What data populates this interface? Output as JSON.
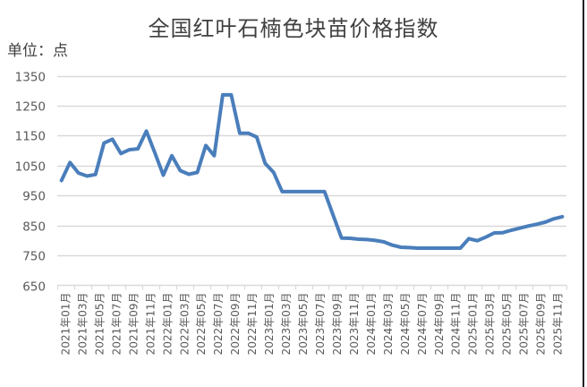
{
  "chart_data": {
    "type": "line",
    "title": "全国红叶石楠色块苗价格指数",
    "unit_label": "单位：点",
    "xlabel": "",
    "ylabel": "单位：点",
    "ylim": [
      650,
      1350
    ],
    "yticks": [
      650,
      750,
      850,
      950,
      1050,
      1150,
      1250,
      1350
    ],
    "grid": true,
    "legend": "none",
    "line_color": "#4a7ebb",
    "grid_color": "#d9d9d9",
    "x": [
      "2021年01月",
      "2021年02月",
      "2021年03月",
      "2021年04月",
      "2021年05月",
      "2021年06月",
      "2021年07月",
      "2021年08月",
      "2021年09月",
      "2021年10月",
      "2021年11月",
      "2021年12月",
      "2022年01月",
      "2022年02月",
      "2022年03月",
      "2022年04月",
      "2022年05月",
      "2022年06月",
      "2022年07月",
      "2022年08月",
      "2022年09月",
      "2022年10月",
      "2022年11月",
      "2022年12月",
      "2023年01月",
      "2023年02月",
      "2023年03月",
      "2023年04月",
      "2023年05月",
      "2023年06月",
      "2023年07月",
      "2023年08月",
      "2023年09月",
      "2023年10月",
      "2023年11月",
      "2023年12月",
      "2024年01月",
      "2024年02月",
      "2024年03月",
      "2024年04月",
      "2024年05月",
      "2024年06月",
      "2024年07月",
      "2024年08月",
      "2024年09月",
      "2024年10月",
      "2024年11月",
      "2024年12月",
      "2025年01月",
      "2025年02月",
      "2025年03月",
      "2025年04月",
      "2025年05月",
      "2025年06月",
      "2025年07月",
      "2025年08月",
      "2025年09月",
      "2025年10月",
      "2025年11月",
      "2025年12月"
    ],
    "xtick_labels": [
      "2021年01月",
      "2021年03月",
      "2021年05月",
      "2021年07月",
      "2021年09月",
      "2021年11月",
      "2022年01月",
      "2022年03月",
      "2022年05月",
      "2022年07月",
      "2022年09月",
      "2022年11月",
      "2023年01月",
      "2023年03月",
      "2023年05月",
      "2023年07月",
      "2023年09月",
      "2023年11月",
      "2024年01月",
      "2024年03月",
      "2024年05月",
      "2024年07月",
      "2024年09月",
      "2024年11月",
      "2025年01月",
      "2025年03月",
      "2025年05月",
      "2025年07月",
      "2025年09月",
      "2025年11月"
    ],
    "series": [
      {
        "name": "全国红叶石楠色块苗价格指数",
        "values": [
          1000,
          1060,
          1025,
          1015,
          1020,
          1125,
          1138,
          1090,
          1103,
          1106,
          1165,
          1092,
          1018,
          1083,
          1033,
          1021,
          1027,
          1117,
          1083,
          1286,
          1286,
          1158,
          1158,
          1145,
          1057,
          1027,
          963,
          963,
          963,
          963,
          963,
          963,
          885,
          808,
          807,
          804,
          803,
          800,
          795,
          784,
          777,
          776,
          774,
          774,
          774,
          774,
          774,
          774,
          806,
          799,
          811,
          825,
          826,
          834,
          841,
          848,
          854,
          861,
          872,
          879
        ]
      }
    ]
  }
}
